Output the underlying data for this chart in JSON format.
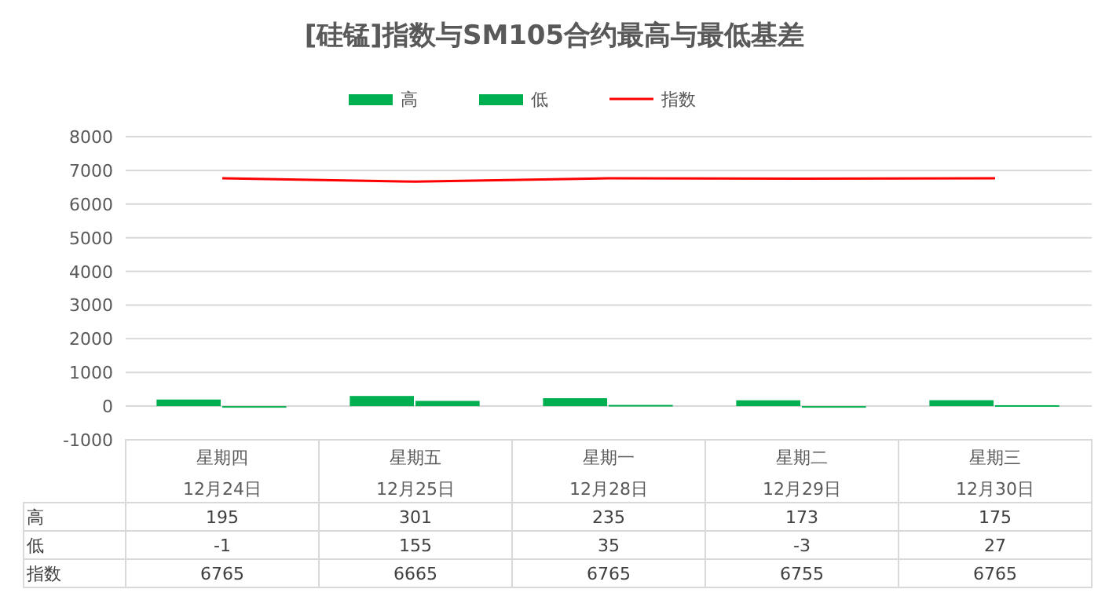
{
  "chart_data": {
    "type": "bar",
    "title": "[硅锰]指数与SM105合约最高与最低基差",
    "categories": [
      "星期四\n12月24日",
      "星期五\n12月25日",
      "星期一\n12月28日",
      "星期二\n12月29日",
      "星期三\n12月30日"
    ],
    "series": [
      {
        "name": "高",
        "color": "#00b050",
        "values": [
          195,
          301,
          235,
          173,
          175
        ]
      },
      {
        "name": "低",
        "color": "#00b050",
        "values": [
          -1,
          155,
          35,
          -3,
          27
        ]
      },
      {
        "name": "指数",
        "type": "line",
        "color": "#ff0000",
        "values": [
          6765,
          6665,
          6765,
          6755,
          6765
        ]
      }
    ],
    "ylim": [
      -1000,
      8000
    ],
    "yticks": [
      -1000,
      0,
      1000,
      2000,
      3000,
      4000,
      5000,
      6000,
      7000,
      8000
    ],
    "grid": "y",
    "legend": "top",
    "data_labels": true,
    "marker": "none",
    "line_style": "solid"
  }
}
